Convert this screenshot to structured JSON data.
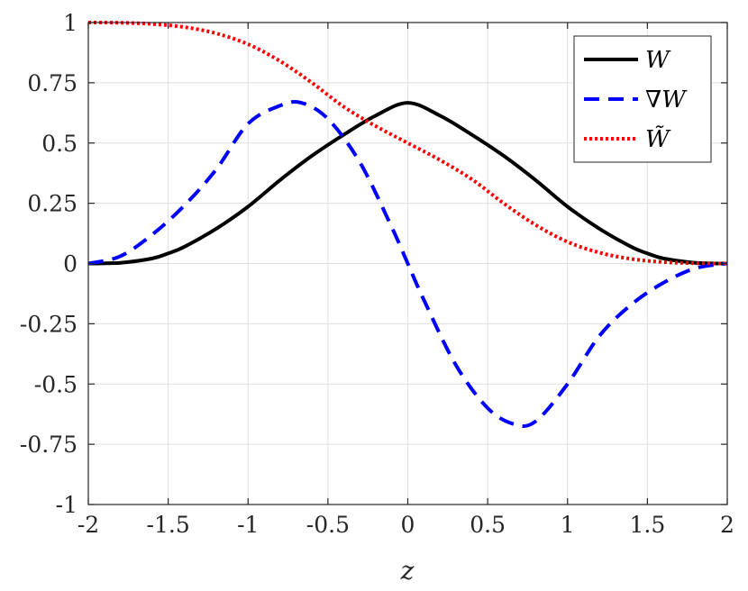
{
  "chart_data": {
    "type": "line",
    "xlabel": "z",
    "ylabel": "",
    "xlim": [
      -2,
      2
    ],
    "ylim": [
      -1,
      1
    ],
    "xticks": [
      "-2",
      "-1.5",
      "-1",
      "-0.5",
      "0",
      "0.5",
      "1",
      "1.5",
      "2"
    ],
    "yticks": [
      "1",
      "0.75",
      "0.5",
      "0.25",
      "0",
      "-0.25",
      "-0.5",
      "-0.75",
      "-1"
    ],
    "grid": true,
    "legend_position": "top-right",
    "series": [
      {
        "name": "W",
        "color": "#000000",
        "style": "solid",
        "x": [
          -2,
          -1.8,
          -1.6,
          -1.5,
          -1.4,
          -1.2,
          -1.0,
          -0.8,
          -0.6,
          -0.4,
          -0.2,
          0,
          0.2,
          0.4,
          0.6,
          0.8,
          1.0,
          1.2,
          1.4,
          1.5,
          1.6,
          1.8,
          2
        ],
        "y": [
          0,
          0.003,
          0.021,
          0.042,
          0.069,
          0.144,
          0.236,
          0.346,
          0.447,
          0.535,
          0.614,
          0.667,
          0.614,
          0.535,
          0.447,
          0.346,
          0.236,
          0.144,
          0.069,
          0.042,
          0.021,
          0.003,
          0
        ]
      },
      {
        "name": "∇W",
        "color": "#0000ff",
        "style": "dashed",
        "x": [
          -2,
          -1.8,
          -1.6,
          -1.4,
          -1.2,
          -1.0,
          -0.8,
          -0.667,
          -0.5,
          -0.3,
          -0.1,
          0,
          0.1,
          0.3,
          0.5,
          0.667,
          0.8,
          1.0,
          1.2,
          1.4,
          1.6,
          1.8,
          2
        ],
        "y": [
          0,
          0.03,
          0.12,
          0.24,
          0.39,
          0.58,
          0.655,
          0.667,
          0.6,
          0.42,
          0.15,
          0,
          -0.15,
          -0.42,
          -0.6,
          -0.667,
          -0.655,
          -0.5,
          -0.3,
          -0.17,
          -0.08,
          -0.02,
          0
        ]
      },
      {
        "name": "W̃",
        "color": "#ff0000",
        "style": "dotted",
        "x": [
          -2,
          -1.8,
          -1.6,
          -1.4,
          -1.2,
          -1.0,
          -0.8,
          -0.6,
          -0.4,
          -0.2,
          0,
          0.2,
          0.4,
          0.6,
          0.8,
          1.0,
          1.2,
          1.4,
          1.6,
          1.8,
          2
        ],
        "y": [
          1,
          0.999,
          0.994,
          0.981,
          0.955,
          0.91,
          0.84,
          0.75,
          0.65,
          0.57,
          0.5,
          0.43,
          0.35,
          0.25,
          0.16,
          0.09,
          0.045,
          0.019,
          0.006,
          0.001,
          0
        ]
      }
    ]
  }
}
